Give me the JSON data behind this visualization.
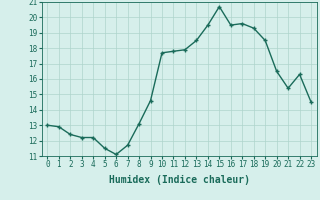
{
  "x": [
    0,
    1,
    2,
    3,
    4,
    5,
    6,
    7,
    8,
    9,
    10,
    11,
    12,
    13,
    14,
    15,
    16,
    17,
    18,
    19,
    20,
    21,
    22,
    23
  ],
  "y": [
    13.0,
    12.9,
    12.4,
    12.2,
    12.2,
    11.5,
    11.1,
    11.7,
    13.1,
    14.6,
    17.7,
    17.8,
    17.9,
    18.5,
    19.5,
    20.7,
    19.5,
    19.6,
    19.3,
    18.5,
    16.5,
    15.4,
    16.3,
    14.5
  ],
  "xlim": [
    -0.5,
    23.5
  ],
  "ylim": [
    11,
    21
  ],
  "yticks": [
    11,
    12,
    13,
    14,
    15,
    16,
    17,
    18,
    19,
    20,
    21
  ],
  "xticks": [
    0,
    1,
    2,
    3,
    4,
    5,
    6,
    7,
    8,
    9,
    10,
    11,
    12,
    13,
    14,
    15,
    16,
    17,
    18,
    19,
    20,
    21,
    22,
    23
  ],
  "xlabel": "Humidex (Indice chaleur)",
  "line_color": "#1a6b5a",
  "marker": "+",
  "marker_size": 3.5,
  "bg_color": "#d6efeb",
  "grid_color": "#aed4cc",
  "tick_label_fontsize": 5.5,
  "xlabel_fontsize": 7,
  "linewidth": 1.0
}
